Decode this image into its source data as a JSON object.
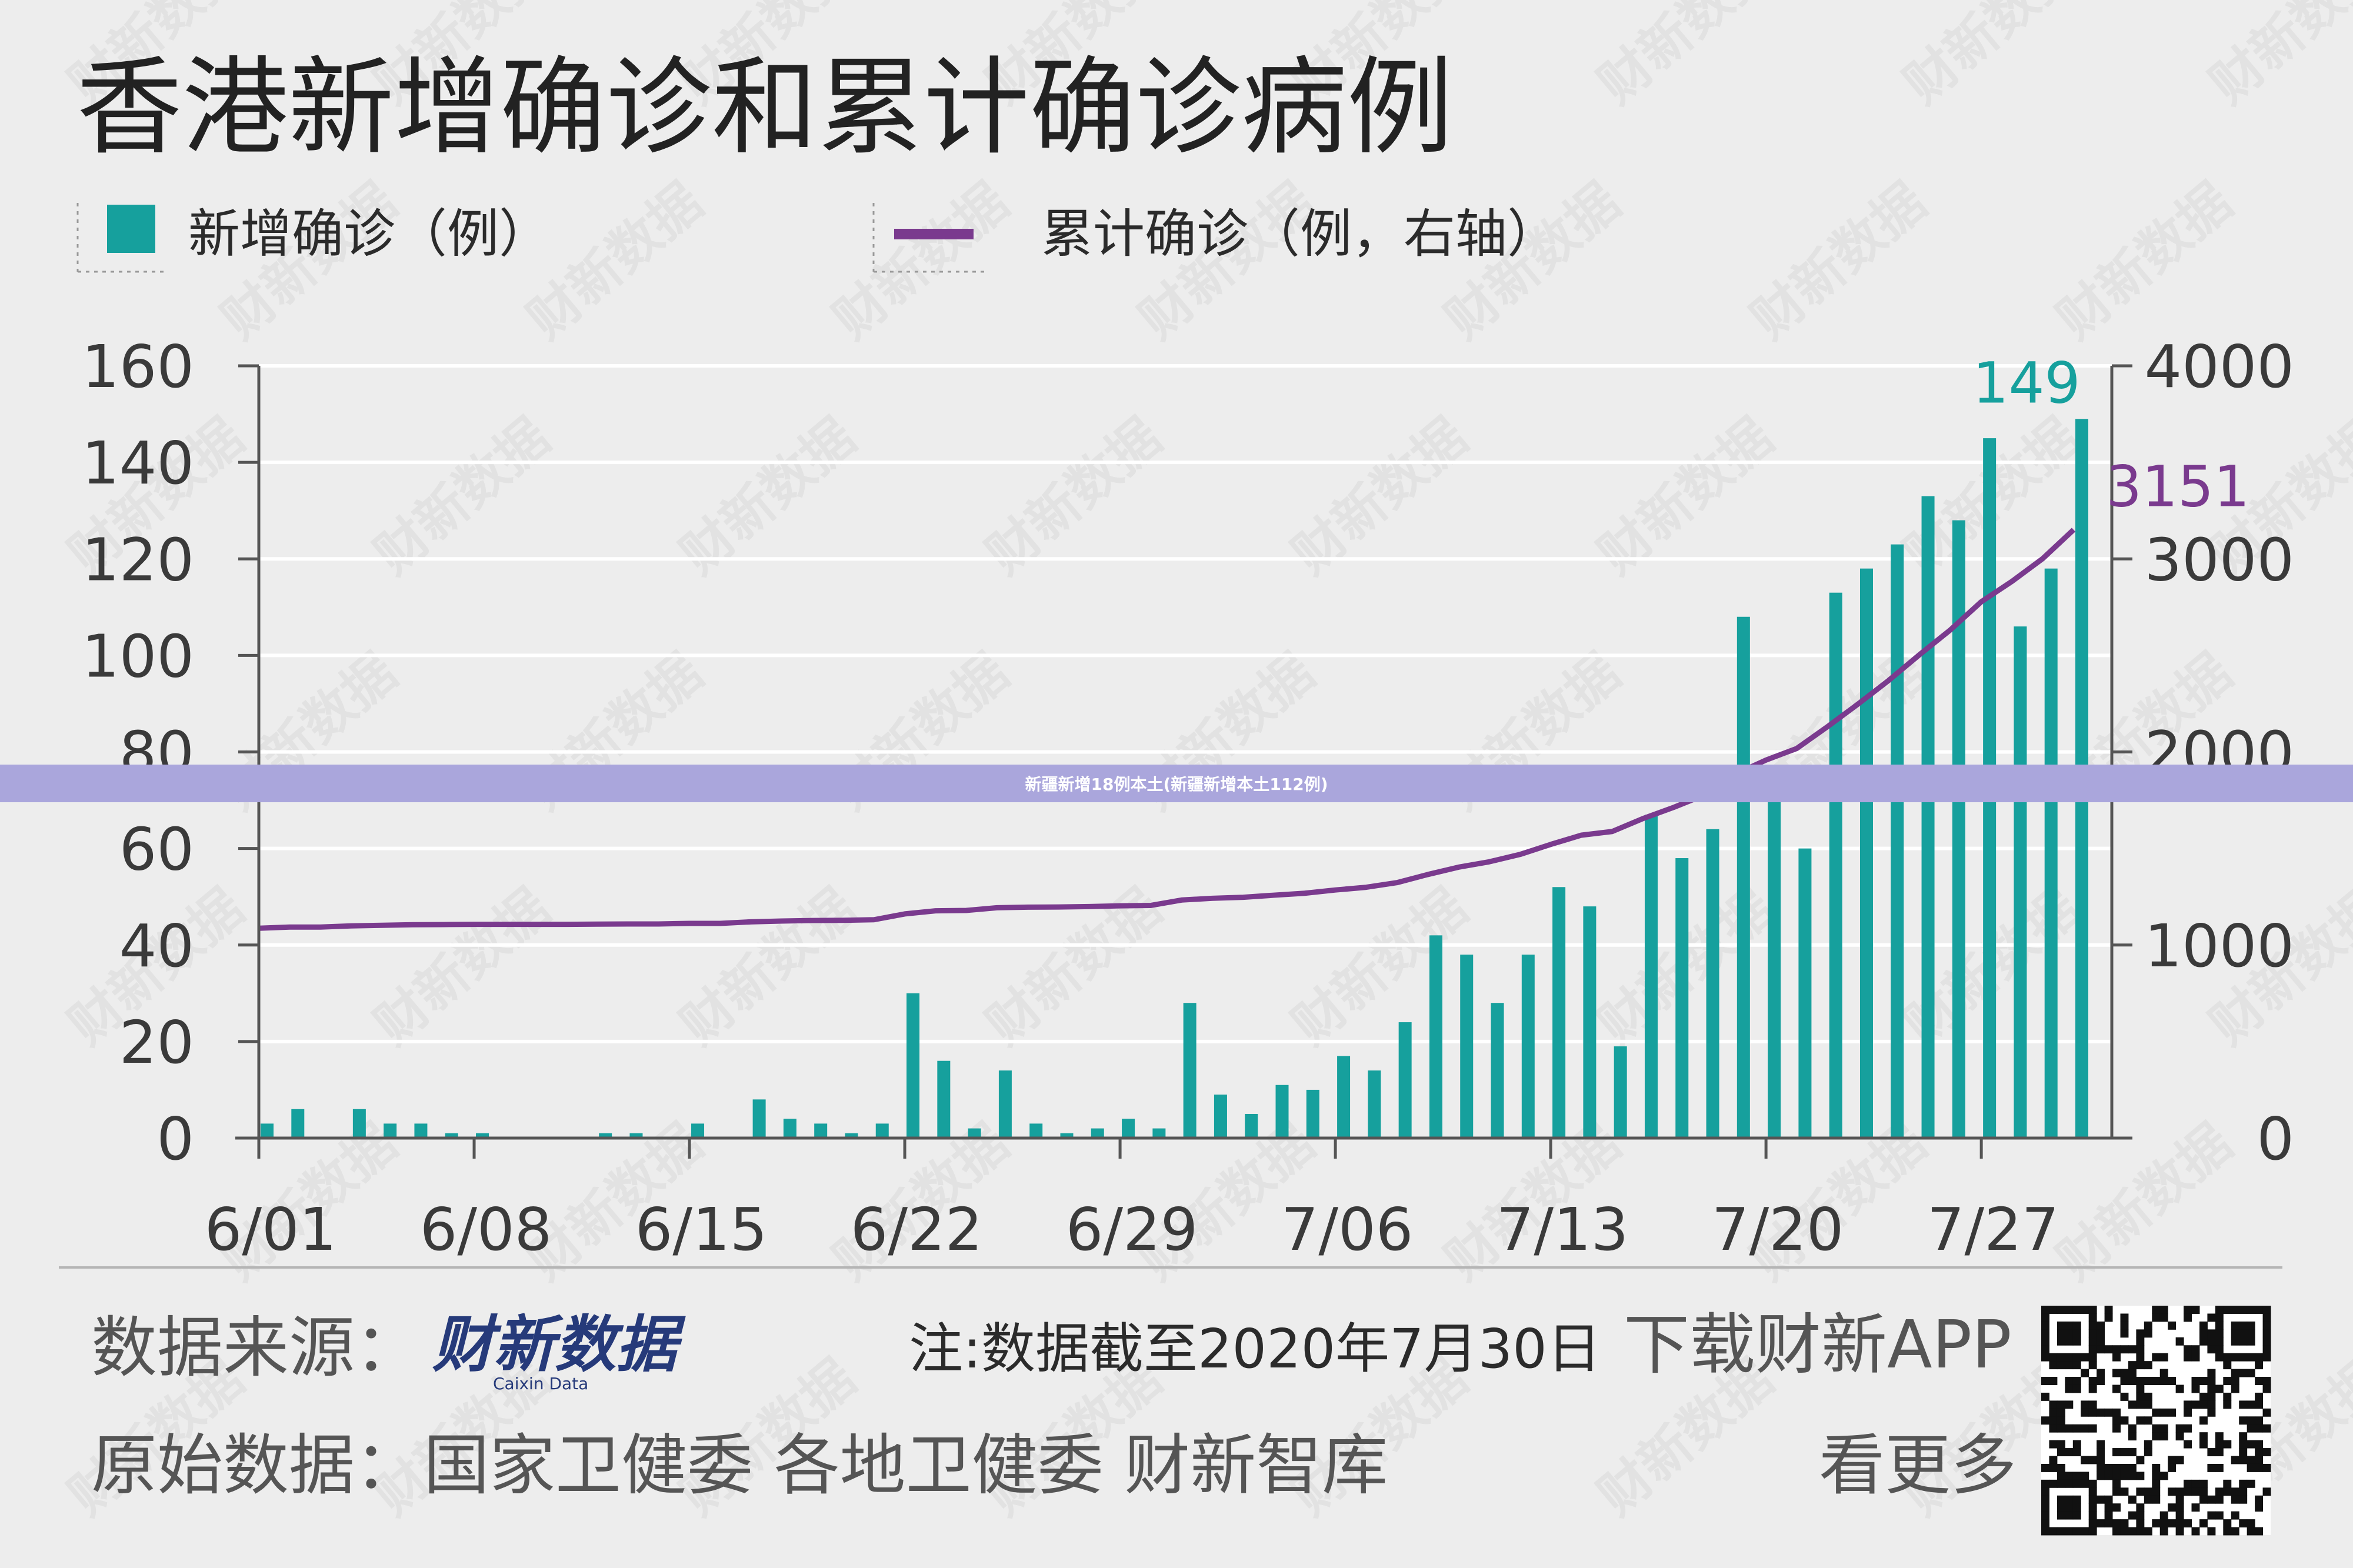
{
  "title": "香港新增确诊和累计确诊病例",
  "legend": {
    "bar_label": "新增确诊（例）",
    "line_label": "累计确诊（例，右轴）"
  },
  "footer": {
    "source_label": "数据来源：",
    "source_logo_text": "财新数据",
    "source_logo_sub": "Caixin Data",
    "note": "注:数据截至2020年7月30日",
    "download": "下载财新APP",
    "raw_label": "原始数据：",
    "raw_sources": "国家卫健委  各地卫健委  财新智库",
    "more": "看更多"
  },
  "watermark": "财新数据",
  "banner_text": "新疆新增18例本土(新疆新增本土112例)",
  "colors": {
    "bar": "#16a09d",
    "line": "#7a3a8e",
    "label_bar": "#16a09d",
    "label_line": "#7a3a8e",
    "grid": "#ffffff",
    "background": "#ededed"
  },
  "chart_data": {
    "type": "bar+line",
    "title": "香港新增确诊和累计确诊病例",
    "x_tick_labels": [
      "6/01",
      "6/08",
      "6/15",
      "6/22",
      "6/29",
      "7/06",
      "7/13",
      "7/20",
      "7/27"
    ],
    "x": [
      "6/01",
      "6/02",
      "6/03",
      "6/04",
      "6/05",
      "6/06",
      "6/07",
      "6/08",
      "6/09",
      "6/10",
      "6/11",
      "6/12",
      "6/13",
      "6/14",
      "6/15",
      "6/16",
      "6/17",
      "6/18",
      "6/19",
      "6/20",
      "6/21",
      "6/22",
      "6/23",
      "6/24",
      "6/25",
      "6/26",
      "6/27",
      "6/28",
      "6/29",
      "6/30",
      "7/01",
      "7/02",
      "7/03",
      "7/04",
      "7/05",
      "7/06",
      "7/07",
      "7/08",
      "7/09",
      "7/10",
      "7/11",
      "7/12",
      "7/13",
      "7/14",
      "7/15",
      "7/16",
      "7/17",
      "7/18",
      "7/19",
      "7/20",
      "7/21",
      "7/22",
      "7/23",
      "7/24",
      "7/25",
      "7/26",
      "7/27",
      "7/28",
      "7/29",
      "7/30"
    ],
    "y_left": {
      "label": "新增确诊（例）",
      "ylim": [
        0,
        160
      ],
      "ticks": [
        0,
        20,
        40,
        60,
        80,
        100,
        120,
        140,
        160
      ]
    },
    "y_right": {
      "label": "累计确诊（例，右轴）",
      "ylim": [
        0,
        4000
      ],
      "ticks": [
        0,
        1000,
        2000,
        3000,
        4000
      ]
    },
    "series": [
      {
        "name": "新增确诊（例）",
        "type": "bar",
        "axis": "left",
        "values": [
          3,
          6,
          0,
          6,
          3,
          3,
          1,
          1,
          0,
          0,
          0,
          1,
          1,
          0,
          3,
          0,
          8,
          4,
          3,
          1,
          3,
          30,
          16,
          2,
          14,
          3,
          1,
          2,
          4,
          2,
          28,
          9,
          5,
          11,
          10,
          17,
          14,
          24,
          42,
          38,
          28,
          38,
          52,
          48,
          19,
          67,
          58,
          64,
          108,
          73,
          60,
          113,
          118,
          123,
          133,
          128,
          145,
          106,
          118,
          149
        ],
        "data_labels": {
          "59": "149"
        }
      },
      {
        "name": "累计确诊（例，右轴）",
        "type": "line",
        "axis": "right",
        "values": [
          1087,
          1093,
          1093,
          1099,
          1102,
          1105,
          1106,
          1107,
          1107,
          1107,
          1107,
          1108,
          1109,
          1109,
          1112,
          1112,
          1120,
          1124,
          1127,
          1128,
          1131,
          1161,
          1177,
          1179,
          1193,
          1196,
          1197,
          1199,
          1203,
          1205,
          1233,
          1242,
          1247,
          1258,
          1268,
          1285,
          1299,
          1323,
          1365,
          1403,
          1431,
          1469,
          1521,
          1569,
          1588,
          1655,
          1713,
          1777,
          1885,
          1958,
          2018,
          2131,
          2249,
          2372,
          2505,
          2633,
          2778,
          2884,
          3002,
          3151
        ],
        "data_labels": {
          "59": "3151"
        }
      }
    ],
    "grid": true,
    "legend_position": "top-left"
  }
}
